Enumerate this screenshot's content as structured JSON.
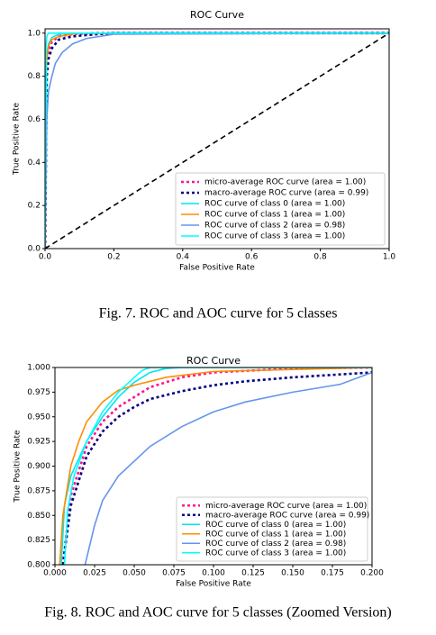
{
  "chart_data": [
    {
      "type": "line",
      "title": "ROC Curve",
      "x_label": "False Positive Rate",
      "y_label": "True Positive Rate",
      "caption": "Fig. 7. ROC and AOC curve for 5 classes",
      "xlim": [
        0,
        1
      ],
      "ylim": [
        0,
        1.02
      ],
      "xticks": [
        {
          "value": 0,
          "label": "0.0"
        },
        0.2,
        0.4,
        0.6,
        0.8,
        {
          "value": 1,
          "label": "1.0"
        }
      ],
      "yticks": [
        {
          "value": 0,
          "label": "0.0"
        },
        0.2,
        0.4,
        0.6,
        0.8,
        {
          "value": 1,
          "label": "1.0"
        }
      ],
      "legend": "lower right",
      "series": [
        {
          "name": "micro-average ROC curve (area = 1.00)",
          "color": "#ff1493",
          "dash": "dotted",
          "x": [
            0,
            0.005,
            0.01,
            0.02,
            0.04,
            0.08,
            0.15,
            1
          ],
          "values": [
            0,
            0.85,
            0.92,
            0.96,
            0.985,
            0.995,
            1,
            1
          ]
        },
        {
          "name": "macro-average ROC curve (area = 0.99)",
          "color": "#000080",
          "dash": "dotted",
          "x": [
            0,
            0.005,
            0.01,
            0.02,
            0.04,
            0.08,
            0.15,
            0.2,
            1
          ],
          "values": [
            0,
            0.8,
            0.88,
            0.93,
            0.97,
            0.985,
            0.995,
            1,
            1
          ]
        },
        {
          "name": "ROC curve of class 0 (area = 1.00)",
          "color": "#00e5ee",
          "dash": "solid",
          "x": [
            0,
            0.005,
            0.01,
            0.02,
            0.04,
            0.08,
            1
          ],
          "values": [
            0,
            0.9,
            0.95,
            0.98,
            0.995,
            1,
            1
          ]
        },
        {
          "name": "ROC curve of class 1 (area = 1.00)",
          "color": "#ff8c00",
          "dash": "solid",
          "x": [
            0,
            0.002,
            0.005,
            0.01,
            0.02,
            0.04,
            0.1,
            1
          ],
          "values": [
            0,
            0.8,
            0.88,
            0.94,
            0.97,
            0.985,
            1,
            1
          ]
        },
        {
          "name": "ROC curve of class 2 (area = 0.98)",
          "color": "#6495ed",
          "dash": "solid",
          "x": [
            0,
            0.005,
            0.01,
            0.02,
            0.03,
            0.05,
            0.08,
            0.12,
            0.2,
            1
          ],
          "values": [
            0,
            0.6,
            0.73,
            0.8,
            0.86,
            0.91,
            0.95,
            0.975,
            0.995,
            1
          ]
        },
        {
          "name": "ROC curve of class 3 (area = 1.00)",
          "color": "#00ffff",
          "dash": "solid",
          "x": [
            0,
            0.003,
            0.006,
            0.01,
            0.02,
            1
          ],
          "values": [
            0,
            0.95,
            0.99,
            1,
            1,
            1
          ]
        },
        {
          "color": "#000000",
          "dash": "dashed",
          "x": [
            0,
            1
          ],
          "values": [
            0,
            1
          ]
        }
      ]
    },
    {
      "type": "line",
      "title": "ROC Curve",
      "x_label": "False Positive Rate",
      "y_label": "True Positive Rate",
      "caption": "Fig. 8.  ROC and AOC curve for 5 classes (Zoomed Version)",
      "xlim": [
        0,
        0.2
      ],
      "ylim": [
        0.8,
        1
      ],
      "xticks": [
        {
          "value": 0,
          "label": "0.000"
        },
        0.025,
        {
          "value": 0.05,
          "label": "0.050"
        },
        0.075,
        {
          "value": 0.1,
          "label": "0.100"
        },
        0.125,
        {
          "value": 0.15,
          "label": "0.150"
        },
        0.175,
        {
          "value": 0.2,
          "label": "0.200"
        }
      ],
      "yticks": [
        {
          "value": 0.8,
          "label": "0.800"
        },
        0.825,
        {
          "value": 0.85,
          "label": "0.850"
        },
        0.875,
        {
          "value": 0.9,
          "label": "0.900"
        },
        0.925,
        {
          "value": 0.95,
          "label": "0.950"
        },
        0.975,
        {
          "value": 1,
          "label": "1.000"
        }
      ],
      "legend": "lower right",
      "series": [
        {
          "name": "micro-average ROC curve (area = 1.00)",
          "color": "#ff1493",
          "dash": "dotted",
          "x": [
            0.005,
            0.01,
            0.02,
            0.03,
            0.04,
            0.05,
            0.06,
            0.08,
            0.1,
            0.15,
            0.2
          ],
          "values": [
            0.8,
            0.87,
            0.92,
            0.945,
            0.96,
            0.97,
            0.98,
            0.99,
            0.995,
            0.999,
            1
          ]
        },
        {
          "name": "macro-average ROC curve (area = 0.99)",
          "color": "#000080",
          "dash": "dotted",
          "x": [
            0.005,
            0.01,
            0.02,
            0.03,
            0.04,
            0.05,
            0.06,
            0.08,
            0.1,
            0.12,
            0.15,
            0.2
          ],
          "values": [
            0.8,
            0.86,
            0.91,
            0.935,
            0.95,
            0.96,
            0.968,
            0.976,
            0.982,
            0.986,
            0.99,
            0.995
          ]
        },
        {
          "name": "ROC curve of class 0 (area = 1.00)",
          "color": "#00e5ee",
          "dash": "solid",
          "x": [
            0.004,
            0.006,
            0.01,
            0.02,
            0.03,
            0.04,
            0.05,
            0.06,
            0.07,
            0.08,
            0.2
          ],
          "values": [
            0.8,
            0.86,
            0.89,
            0.925,
            0.95,
            0.97,
            0.985,
            0.995,
            0.999,
            1,
            1
          ]
        },
        {
          "name": "ROC curve of class 1 (area = 1.00)",
          "color": "#ff8c00",
          "dash": "solid",
          "x": [
            0.003,
            0.005,
            0.01,
            0.015,
            0.02,
            0.03,
            0.04,
            0.05,
            0.07,
            0.1,
            0.2
          ],
          "values": [
            0.8,
            0.85,
            0.9,
            0.925,
            0.945,
            0.965,
            0.977,
            0.982,
            0.99,
            0.996,
            1
          ]
        },
        {
          "name": "ROC curve of class 2 (area = 0.98)",
          "color": "#6495ed",
          "dash": "solid",
          "x": [
            0.019,
            0.022,
            0.025,
            0.03,
            0.04,
            0.05,
            0.06,
            0.08,
            0.1,
            0.12,
            0.15,
            0.18,
            0.2
          ],
          "values": [
            0.8,
            0.82,
            0.84,
            0.865,
            0.89,
            0.905,
            0.92,
            0.94,
            0.955,
            0.965,
            0.975,
            0.983,
            0.995
          ]
        },
        {
          "name": "ROC curve of class 3 (area = 1.00)",
          "color": "#00ffff",
          "dash": "solid",
          "x": [
            0.006,
            0.008,
            0.012,
            0.02,
            0.03,
            0.04,
            0.05,
            0.055,
            0.06,
            0.2
          ],
          "values": [
            0.8,
            0.855,
            0.89,
            0.925,
            0.955,
            0.975,
            0.99,
            0.997,
            1,
            1
          ]
        }
      ]
    }
  ]
}
